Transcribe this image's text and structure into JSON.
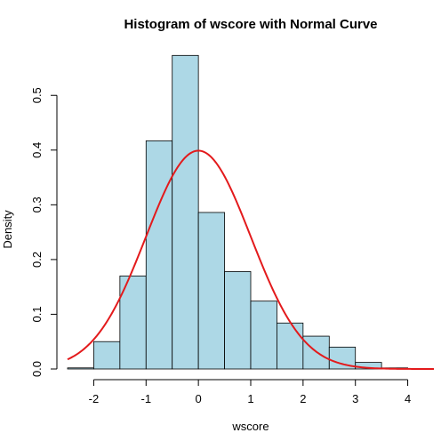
{
  "chart_data": {
    "type": "bar",
    "title": "Histogram of wscore with Normal Curve",
    "xlabel": "wscore",
    "ylabel": "Density",
    "xlim": [
      -2.5,
      4.5
    ],
    "ylim": [
      0,
      0.58
    ],
    "xticks": [
      -2,
      -1,
      0,
      1,
      2,
      3,
      4
    ],
    "yticks": [
      0.0,
      0.1,
      0.2,
      0.3,
      0.4,
      0.5
    ],
    "ytick_labels": [
      "0.0",
      "0.1",
      "0.2",
      "0.3",
      "0.4",
      "0.5"
    ],
    "bin_edges": [
      -2.5,
      -2.0,
      -1.5,
      -1.0,
      -0.5,
      0.0,
      0.5,
      1.0,
      1.5,
      2.0,
      2.5,
      3.0,
      3.5,
      4.0
    ],
    "bins": [
      {
        "from": -2.5,
        "to": -2.0,
        "density": 0.002
      },
      {
        "from": -2.0,
        "to": -1.5,
        "density": 0.05
      },
      {
        "from": -1.5,
        "to": -1.0,
        "density": 0.17
      },
      {
        "from": -1.0,
        "to": -0.5,
        "density": 0.417
      },
      {
        "from": -0.5,
        "to": 0.0,
        "density": 0.573
      },
      {
        "from": 0.0,
        "to": 0.5,
        "density": 0.286
      },
      {
        "from": 0.5,
        "to": 1.0,
        "density": 0.178
      },
      {
        "from": 1.0,
        "to": 1.5,
        "density": 0.124
      },
      {
        "from": 1.5,
        "to": 2.0,
        "density": 0.084
      },
      {
        "from": 2.0,
        "to": 2.5,
        "density": 0.06
      },
      {
        "from": 2.5,
        "to": 3.0,
        "density": 0.04
      },
      {
        "from": 3.0,
        "to": 3.5,
        "density": 0.012
      },
      {
        "from": 3.5,
        "to": 4.0,
        "density": 0.002
      }
    ],
    "curve": {
      "type": "normal",
      "mean": 0,
      "sd": 1,
      "x_range": [
        -2.5,
        4.5
      ]
    },
    "grid": false,
    "legend": "none",
    "colors": {
      "bar_fill": "#add8e6",
      "bar_stroke": "#000000",
      "curve": "#e31a1c"
    }
  }
}
